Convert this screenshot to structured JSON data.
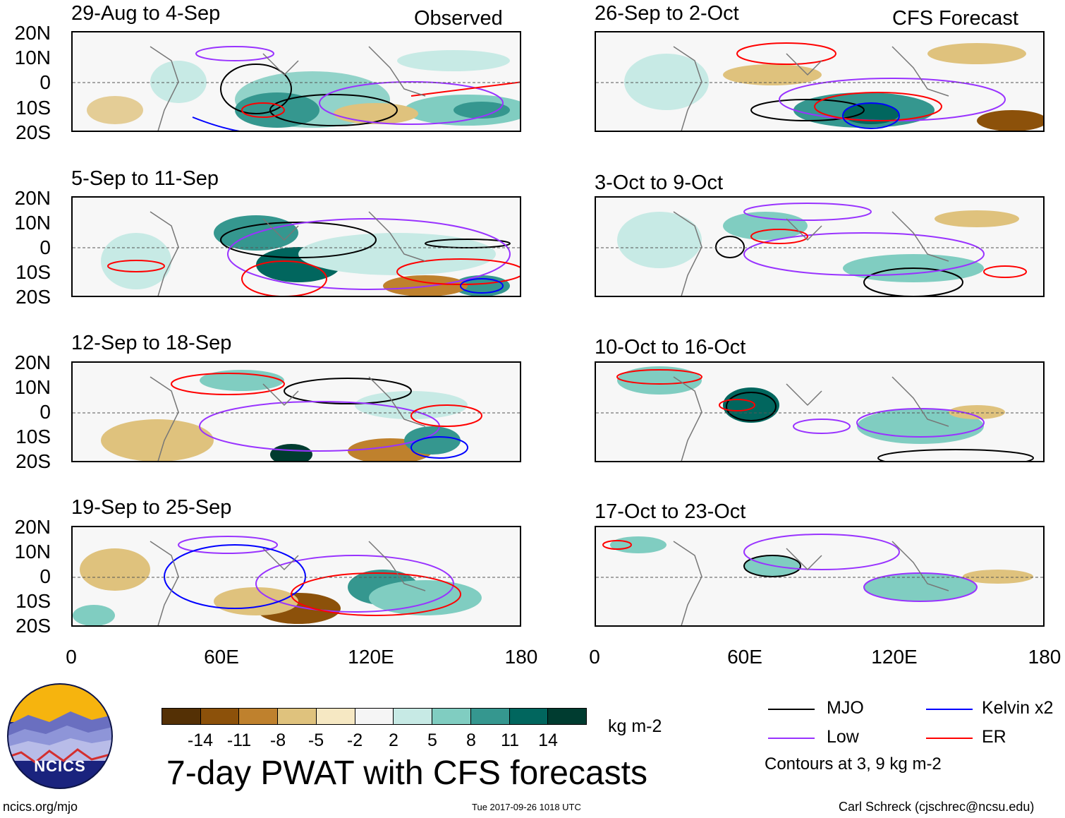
{
  "figure": {
    "title": "7-day PWAT with CFS forecasts",
    "units": "kg m-2",
    "left_column_label": "Observed",
    "right_column_label": "CFS Forecast"
  },
  "panels_observed": [
    {
      "title": "29-Aug to 4-Sep"
    },
    {
      "title": "5-Sep to 11-Sep"
    },
    {
      "title": "12-Sep to 18-Sep"
    },
    {
      "title": "19-Sep to 25-Sep"
    }
  ],
  "panels_forecast": [
    {
      "title": "26-Sep to 2-Oct"
    },
    {
      "title": "3-Oct to 9-Oct"
    },
    {
      "title": "10-Oct to 16-Oct"
    },
    {
      "title": "17-Oct to 23-Oct"
    }
  ],
  "axes": {
    "lat_labels": [
      "20N",
      "10N",
      "0",
      "10S",
      "20S"
    ],
    "lon_labels": [
      "0",
      "60E",
      "120E",
      "180"
    ]
  },
  "colorbar": {
    "labels": [
      "-14",
      "-11",
      "-8",
      "-5",
      "-2",
      "2",
      "5",
      "8",
      "11",
      "14"
    ],
    "colors": [
      "#543005",
      "#8c510a",
      "#bf812d",
      "#dfc27d",
      "#f6e8c3",
      "#f5f5f5",
      "#c7eae5",
      "#80cdc1",
      "#35978f",
      "#01665e",
      "#003c30"
    ]
  },
  "legend": {
    "items": [
      {
        "label": "MJO",
        "color": "#000000"
      },
      {
        "label": "Kelvin x2",
        "color": "#0000ff"
      },
      {
        "label": "Low",
        "color": "#9933ff"
      },
      {
        "label": "ER",
        "color": "#ff0000"
      }
    ],
    "note": "Contours at 3, 9 kg m-2"
  },
  "footer": {
    "left": "ncics.org/mjo",
    "center": "Tue 2017-09-26 1018 UTC",
    "right": "Carl Schreck (cjschrec@ncsu.edu)"
  },
  "logo": {
    "text": "NCICS"
  }
}
